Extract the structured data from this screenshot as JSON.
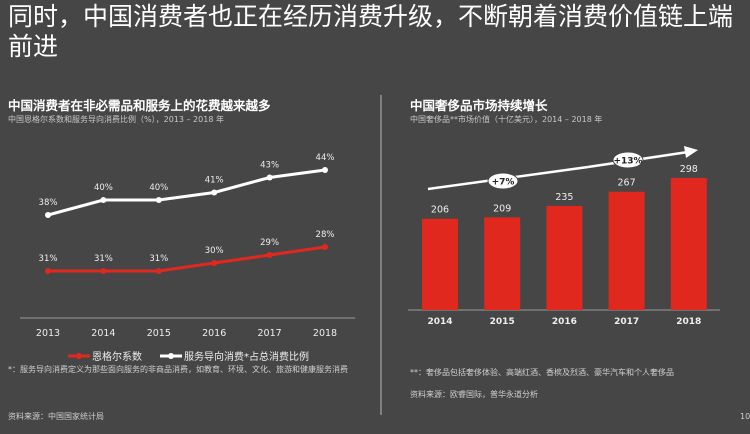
{
  "title": "同时，中国消费者也正在经历消费升级，不断朝着消费价值链上端前进",
  "left": {
    "title": "中国消费者在非必需品和服务上的花费越来越多",
    "subtitle": "中国恩格尔系数和服务导向消费比例（%），2013 – 2018 年",
    "footnote": "*：服务导向消费定义为那些面向服务的非商品消费，如教育、环境、文化、旅游和健康服务消费",
    "source": "资料来源：中国国家统计局"
  },
  "right": {
    "title": "中国奢侈品市场持续增长",
    "subtitle": "中国奢侈品**市场价值（十亿美元），2014 – 2018 年",
    "footnote": "**：奢侈品包括奢侈体验、高端红酒、香槟及烈酒、豪华汽车和个人奢侈品",
    "source": "资料来源：欧睿国际，普华永道分析"
  },
  "page_number": "10",
  "chart_data": [
    {
      "type": "line",
      "categories": [
        "2013",
        "2014",
        "2015",
        "2016",
        "2017",
        "2018"
      ],
      "series": [
        {
          "name": "恩格尔系数",
          "color": "#e0281e",
          "values": [
            31,
            31,
            31,
            30,
            29,
            28
          ],
          "labels": [
            "31%",
            "31%",
            "31%",
            "30%",
            "29%",
            "28%"
          ]
        },
        {
          "name": "服务导向消费*占总消费比例",
          "color": "#ffffff",
          "values": [
            38,
            40,
            40,
            41,
            43,
            44
          ],
          "labels": [
            "38%",
            "40%",
            "40%",
            "41%",
            "43%",
            "44%"
          ]
        }
      ],
      "legend": "bottom"
    },
    {
      "type": "bar",
      "categories": [
        "2014",
        "2015",
        "2016",
        "2017",
        "2018"
      ],
      "values": [
        206,
        209,
        235,
        267,
        298
      ],
      "color": "#e0281e",
      "annotations": [
        {
          "text": "+7%"
        },
        {
          "text": "+13%"
        }
      ]
    }
  ]
}
